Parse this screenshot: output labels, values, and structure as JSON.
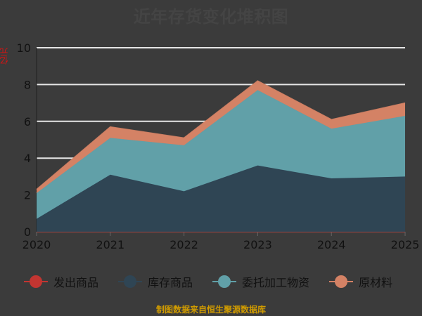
{
  "header": {
    "title": "近年存货变化堆积图"
  },
  "yaxis": {
    "unit_label": "亿元"
  },
  "footer": {
    "text": "制图数据来自恒生聚源数据库"
  },
  "legend": {
    "items": [
      {
        "label": "发出商品",
        "color": "#c23531"
      },
      {
        "label": "库存商品",
        "color": "#2f4554"
      },
      {
        "label": "委托加工物资",
        "color": "#61a0a8"
      },
      {
        "label": "原材料",
        "color": "#d48265"
      }
    ]
  },
  "chart_data": {
    "type": "area",
    "title": "近年存货变化堆积图",
    "x": [
      "2020",
      "2021",
      "2022",
      "2023",
      "2024",
      "2025"
    ],
    "ylim": [
      0,
      10
    ],
    "yticks": [
      0,
      2,
      4,
      6,
      8,
      10
    ],
    "grid": true,
    "legend_position": "bottom",
    "stacked": true,
    "series": [
      {
        "name": "发出商品",
        "values": [
          0,
          0,
          0,
          0,
          0,
          0
        ],
        "color": "#c23531"
      },
      {
        "name": "库存商品",
        "values": [
          0.7,
          3.1,
          2.2,
          3.6,
          2.9,
          3.0
        ],
        "color": "#2f4554"
      },
      {
        "name": "委托加工物资",
        "values": [
          1.4,
          2.0,
          2.5,
          4.1,
          2.7,
          3.3
        ],
        "color": "#61a0a8"
      },
      {
        "name": "原材料",
        "values": [
          0.2,
          0.6,
          0.4,
          0.5,
          0.5,
          0.7
        ],
        "color": "#d48265"
      }
    ]
  }
}
